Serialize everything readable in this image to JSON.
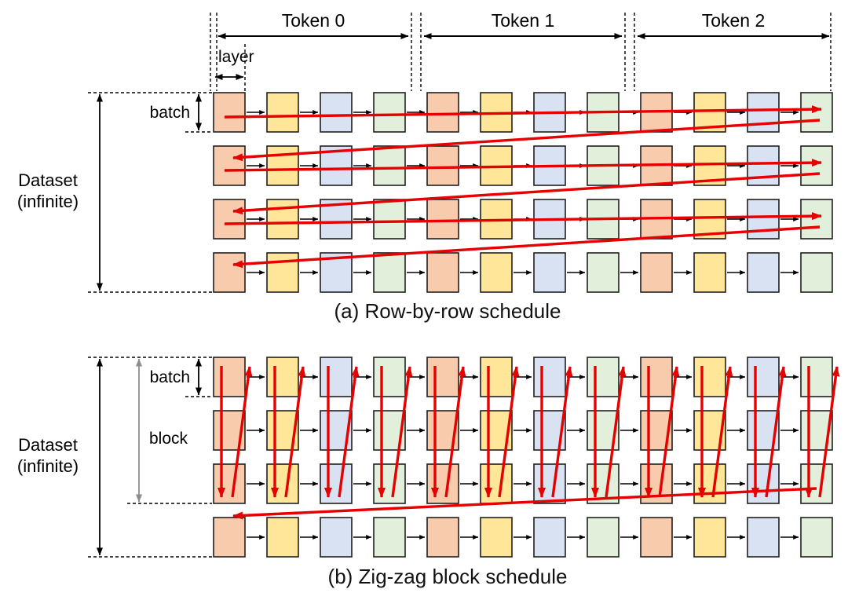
{
  "figure": {
    "tokens": [
      "Token 0",
      "Token 1",
      "Token 2"
    ],
    "layer_label": "layer",
    "grid": {
      "rows": 4,
      "cols": 12,
      "num_tokens": 3,
      "layers_per_token": 4,
      "cell_colors": [
        "#f8cbad",
        "#ffe699",
        "#d9e2f3",
        "#e2efda"
      ],
      "cell_border": "#1f1f1f"
    },
    "panel_a": {
      "caption": "(a) Row-by-row schedule",
      "dataset_label": "Dataset\n(infinite)",
      "batch_label": "batch",
      "schedule": "row-by-row"
    },
    "panel_b": {
      "caption": "(b) Zig-zag block schedule",
      "dataset_label": "Dataset\n(infinite)",
      "batch_label": "batch",
      "block_label": "block",
      "block_rows": 3,
      "schedule": "zigzag-block"
    },
    "colors": {
      "schedule_arrow": "#e60000",
      "annotation": "#000000",
      "block_arrow": "#8c8c8c"
    }
  }
}
